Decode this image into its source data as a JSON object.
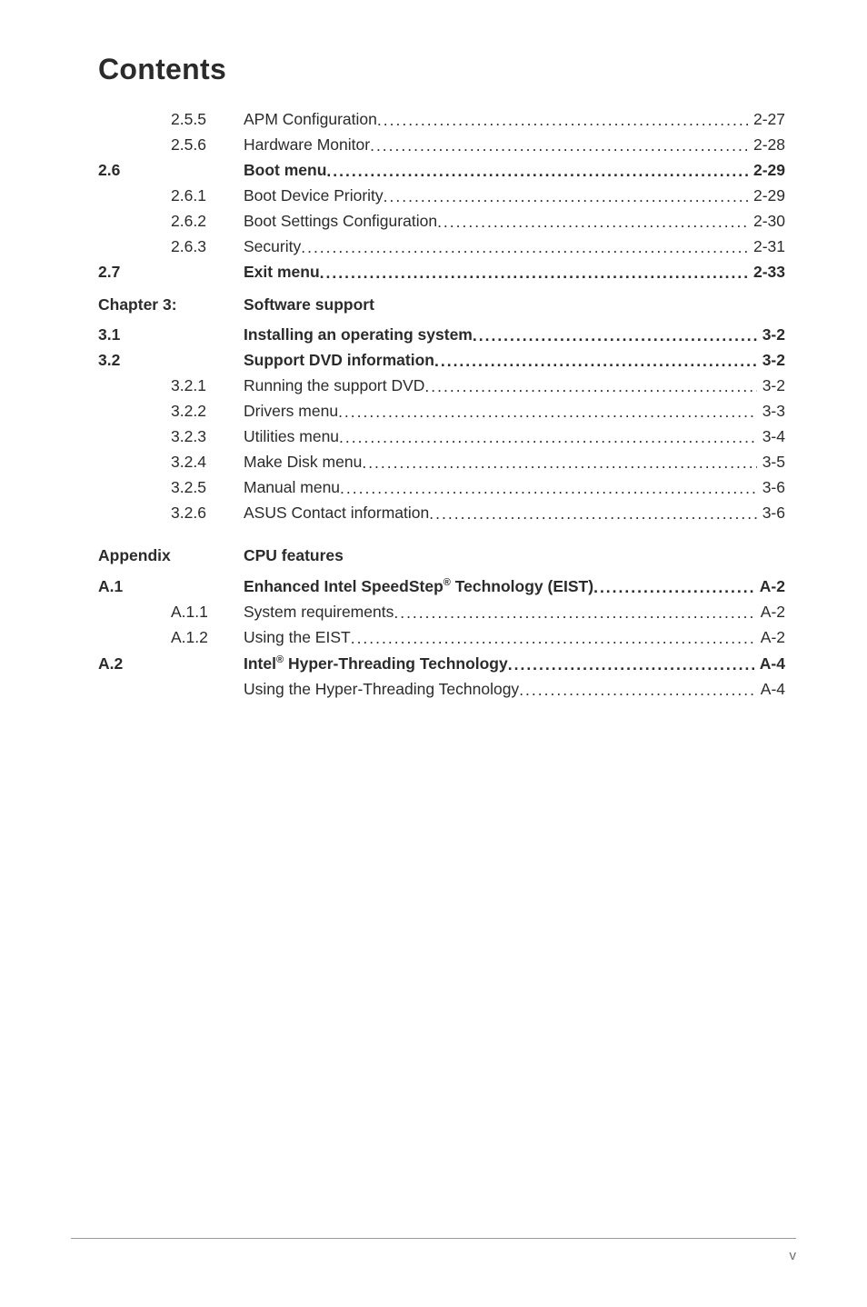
{
  "title": "Contents",
  "toc": {
    "pre_rows": [
      {
        "num": "",
        "sub": "2.5.5",
        "label": "APM Configuration ",
        "page": " 2-27",
        "bold": false
      },
      {
        "num": "",
        "sub": "2.5.6",
        "label": "Hardware Monitor ",
        "page": " 2-28",
        "bold": false
      },
      {
        "num": "2.6",
        "sub": "",
        "label": "Boot menu ",
        "page": " 2-29",
        "bold": true
      },
      {
        "num": "",
        "sub": "2.6.1",
        "label": "Boot Device Priority ",
        "page": " 2-29",
        "bold": false
      },
      {
        "num": "",
        "sub": "2.6.2",
        "label": "Boot Settings Configuration ",
        "page": " 2-30",
        "bold": false
      },
      {
        "num": "",
        "sub": "2.6.3",
        "label": "Security ",
        "page": " 2-31",
        "bold": false
      },
      {
        "num": "2.7",
        "sub": "",
        "label": "Exit menu ",
        "page": " 2-33",
        "bold": true
      }
    ],
    "chapter3": {
      "label": "Chapter 3:",
      "title": "Software support"
    },
    "ch3_rows": [
      {
        "num": "3.1",
        "sub": "",
        "label": "Installing an operating system ",
        "page": " 3-2",
        "bold": true
      },
      {
        "num": "3.2",
        "sub": "",
        "label": "Support DVD information ",
        "page": " 3-2",
        "bold": true
      },
      {
        "num": "",
        "sub": "3.2.1",
        "label": "Running the support DVD ",
        "page": " 3-2",
        "bold": false
      },
      {
        "num": "",
        "sub": "3.2.2",
        "label": "Drivers menu",
        "page": " 3-3",
        "bold": false
      },
      {
        "num": "",
        "sub": "3.2.3",
        "label": "Utilities menu ",
        "page": " 3-4",
        "bold": false
      },
      {
        "num": "",
        "sub": "3.2.4",
        "label": "Make Disk menu ",
        "page": " 3-5",
        "bold": false
      },
      {
        "num": "",
        "sub": "3.2.5",
        "label": "Manual menu ",
        "page": " 3-6",
        "bold": false
      },
      {
        "num": "",
        "sub": "3.2.6",
        "label": "ASUS Contact information ",
        "page": " 3-6",
        "bold": false
      }
    ],
    "appendix": {
      "label": "Appendix",
      "title": "CPU features"
    },
    "app_rows_a1": {
      "head": {
        "num": "A.1",
        "sub": "",
        "label_pre": "Enhanced Intel SpeedStep",
        "label_sup": "®",
        "label_post": " Technology (EIST) ",
        "page": "A-2",
        "bold": true
      },
      "children": [
        {
          "num": "",
          "sub": "A.1.1",
          "label": "System requirements ",
          "page": "A-2",
          "bold": false
        },
        {
          "num": "",
          "sub": "A.1.2",
          "label": "Using the EIST",
          "page": "A-2",
          "bold": false
        }
      ]
    },
    "app_rows_a2": {
      "head": {
        "num": "A.2",
        "sub": "",
        "label_pre": "Intel",
        "label_sup": "®",
        "label_post": " Hyper-Threading Technology ",
        "page": "A-4",
        "bold": true
      },
      "children": [
        {
          "num": "",
          "sub": "",
          "label": "Using the Hyper-Threading Technology ",
          "page": "A-4",
          "bold": false
        }
      ]
    }
  },
  "footer_page": "v"
}
